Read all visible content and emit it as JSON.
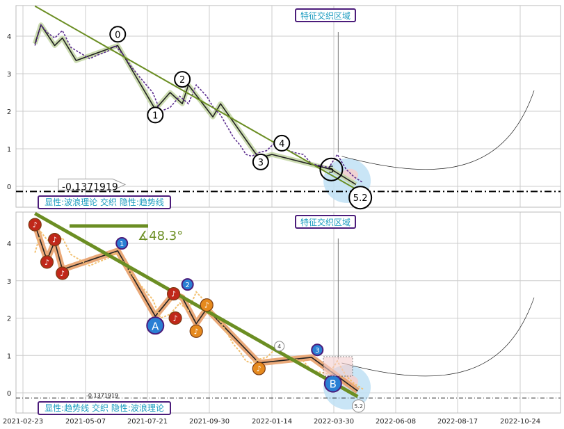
{
  "chart_data": [
    {
      "type": "line",
      "panel": "top",
      "title": "",
      "annotations": {
        "region_label": "特征交织区域",
        "mode_label": "显性:波浪理论 交织 隐性:趋势线",
        "baseline_value": "-0.1371919",
        "wave_labels": [
          "0",
          "1",
          "2",
          "3",
          "4",
          "5",
          "5.2"
        ]
      },
      "x_ticks": [
        "2021-02-23",
        "2021-05-07",
        "2021-07-21",
        "2021-09-30",
        "2022-01-14",
        "2022-03-30",
        "2022-06-08",
        "2022-08-17",
        "2022-10-24"
      ],
      "y_ticks": [
        "0",
        "1",
        "2",
        "3",
        "4"
      ],
      "ylim": [
        -0.5,
        4.8
      ],
      "baseline": -0.137,
      "price_series": {
        "name": "",
        "x": [
          "2021-03-09",
          "2021-03-16",
          "2021-03-23",
          "2021-04-01",
          "2021-04-10",
          "2021-04-20",
          "2021-05-01",
          "2021-05-12",
          "2021-05-22",
          "2021-06-03",
          "2021-06-12",
          "2021-06-22",
          "2021-07-01",
          "2021-07-12",
          "2021-07-27",
          "2021-08-05",
          "2021-08-16",
          "2021-08-27",
          "2021-09-06",
          "2021-09-15",
          "2021-09-27",
          "2021-10-07",
          "2021-10-19",
          "2021-10-30",
          "2021-11-10",
          "2021-11-21",
          "2021-12-01",
          "2021-12-11",
          "2021-12-23",
          "2022-01-05",
          "2022-01-17",
          "2022-01-28",
          "2022-02-10",
          "2022-02-21",
          "2022-03-03",
          "2022-03-14",
          "2022-03-24",
          "2022-04-03",
          "2022-04-13",
          "2022-04-22",
          "2022-05-02"
        ],
        "values": [
          3.75,
          4.3,
          4.1,
          3.95,
          4.15,
          3.7,
          3.55,
          3.4,
          3.5,
          3.6,
          3.75,
          3.5,
          3.2,
          2.9,
          2.5,
          2.0,
          2.1,
          2.4,
          2.2,
          2.7,
          2.4,
          2.1,
          1.9,
          1.6,
          1.3,
          1.1,
          0.85,
          0.8,
          0.9,
          0.95,
          1.15,
          1.0,
          0.9,
          0.85,
          0.6,
          0.55,
          0.5,
          0.85,
          0.45,
          0.25,
          0.1
        ]
      },
      "wave_path": {
        "x": [
          "2021-03-09",
          "2021-03-16",
          "2021-04-01",
          "2021-04-10",
          "2021-04-26",
          "2021-06-15",
          "2021-07-30",
          "2021-08-16",
          "2021-08-30",
          "2021-09-06",
          "2021-10-06",
          "2021-10-19",
          "2021-12-23",
          "2022-01-14",
          "2022-03-27",
          "2022-04-24"
        ],
        "values": [
          3.8,
          4.3,
          3.75,
          3.95,
          3.35,
          3.75,
          2.05,
          2.5,
          2.2,
          2.7,
          1.85,
          2.2,
          0.75,
          0.85,
          0.45,
          0.05
        ]
      },
      "trendline": {
        "x": [
          "2021-03-09",
          "2022-04-26"
        ],
        "values": [
          4.8,
          -0.1
        ]
      },
      "pivots": [
        {
          "label": "0",
          "x": "2021-06-15",
          "value": 4.05
        },
        {
          "label": "1",
          "x": "2021-07-30",
          "value": 1.9
        },
        {
          "label": "2",
          "x": "2021-08-30",
          "value": 2.85
        },
        {
          "label": "3",
          "x": "2021-12-26",
          "value": 0.65
        },
        {
          "label": "4",
          "x": "2022-01-26",
          "value": 1.15
        },
        {
          "label": "5",
          "x": "2022-03-27",
          "value": 0.45
        },
        {
          "label": "5.2",
          "x": "2022-04-29",
          "value": -0.3
        }
      ]
    },
    {
      "type": "line",
      "panel": "bottom",
      "title": "",
      "annotations": {
        "region_label": "特征交织区域",
        "mode_label": "显性:趋势线 交织 隐性:波浪理论",
        "baseline_value": "-0.1371919",
        "angle_label": "∡48.3°",
        "wave_labels": [
          "1",
          "2",
          "3",
          "4",
          "5.2"
        ],
        "letter_labels": [
          "A",
          "B"
        ]
      },
      "x_ticks": [
        "2021-02-23",
        "2021-05-07",
        "2021-07-21",
        "2021-09-30",
        "2022-01-14",
        "2022-03-30",
        "2022-06-08",
        "2022-08-17",
        "2022-10-24"
      ],
      "y_ticks": [
        "0",
        "1",
        "2",
        "3",
        "4"
      ],
      "ylim": [
        -0.5,
        4.8
      ],
      "baseline": -0.137,
      "price_series": {
        "name": "",
        "x": [
          "2021-03-09",
          "2021-03-16",
          "2021-03-23",
          "2021-04-01",
          "2021-04-10",
          "2021-04-20",
          "2021-05-01",
          "2021-05-12",
          "2021-05-22",
          "2021-06-03",
          "2021-06-12",
          "2021-06-22",
          "2021-07-01",
          "2021-07-12",
          "2021-07-27",
          "2021-08-05",
          "2021-08-16",
          "2021-08-27",
          "2021-09-06",
          "2021-09-15",
          "2021-09-27",
          "2021-10-07",
          "2021-10-19",
          "2021-10-30",
          "2021-11-10",
          "2021-11-21",
          "2021-12-01",
          "2021-12-11",
          "2021-12-23",
          "2022-01-05",
          "2022-01-17",
          "2022-01-28",
          "2022-02-10",
          "2022-02-21",
          "2022-03-03",
          "2022-03-14",
          "2022-03-24",
          "2022-04-03",
          "2022-04-13",
          "2022-04-22",
          "2022-05-02"
        ],
        "values": [
          3.75,
          4.3,
          4.1,
          3.95,
          4.15,
          3.7,
          3.55,
          3.4,
          3.5,
          3.6,
          3.75,
          3.5,
          3.2,
          2.9,
          2.5,
          2.0,
          2.1,
          2.4,
          2.2,
          2.7,
          2.4,
          2.1,
          1.9,
          1.6,
          1.3,
          1.1,
          0.85,
          0.8,
          0.9,
          0.95,
          1.15,
          1.0,
          0.9,
          0.85,
          0.6,
          0.55,
          0.5,
          0.85,
          0.45,
          0.25,
          0.1
        ]
      },
      "wave_path": {
        "x": [
          "2021-03-09",
          "2021-03-23",
          "2021-04-01",
          "2021-04-10",
          "2021-06-15",
          "2021-07-30",
          "2021-08-20",
          "2021-08-30",
          "2021-09-15",
          "2021-09-27",
          "2021-12-23",
          "2022-03-03",
          "2022-04-26"
        ],
        "values": [
          4.5,
          3.55,
          4.05,
          3.3,
          3.8,
          2.05,
          2.65,
          2.55,
          1.85,
          2.25,
          0.8,
          0.95,
          0.05
        ]
      },
      "trendline": {
        "x": [
          "2021-03-09",
          "2022-04-26"
        ],
        "values": [
          4.8,
          -0.1
        ]
      },
      "pivots": [
        {
          "label": "1",
          "x": "2021-06-20",
          "value": 4.0
        },
        {
          "label": "2",
          "x": "2021-09-05",
          "value": 2.9
        },
        {
          "label": "3",
          "x": "2022-03-10",
          "value": 1.15
        },
        {
          "label": "4",
          "x": "2022-01-23",
          "value": 1.25
        },
        {
          "label": "5.2",
          "x": "2022-04-27",
          "value": -0.35
        },
        {
          "label": "A",
          "x": "2021-07-30",
          "value": 1.8
        },
        {
          "label": "B",
          "x": "2022-03-29",
          "value": 0.25
        }
      ]
    }
  ],
  "colors": {
    "wave_path_top": "#c7d8a8",
    "wave_path_bottom": "#e8a06a",
    "trendline": "#6b8e23",
    "price_top": "#5b2d8e",
    "price_bottom": "#f2c070",
    "marker_red": "#c0281a",
    "marker_orange": "#e68a1e",
    "marker_blue": "#2a7fd4",
    "label_text": "#1a9bbf",
    "label_border": "#4b1c7a",
    "highlight_blue": "#bfe0f5",
    "highlight_pink": "#f4cfcf"
  }
}
